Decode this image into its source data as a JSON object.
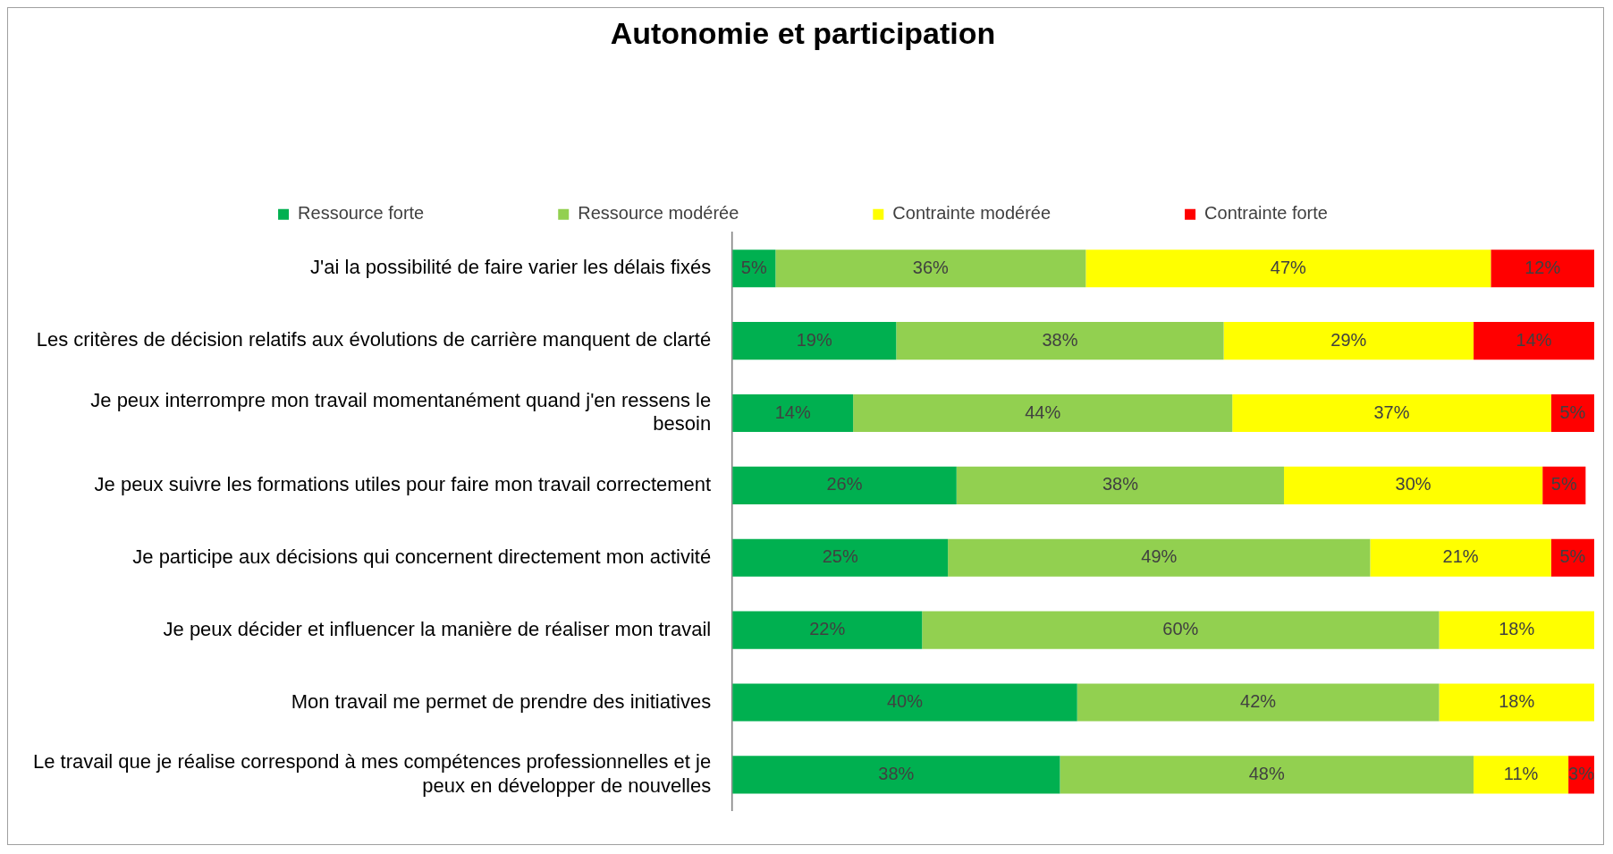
{
  "chart_data": {
    "type": "bar",
    "orientation": "horizontal",
    "stacked": true,
    "title": "Autonomie et participation",
    "legend": "top",
    "grid": false,
    "categories": [
      "J'ai la possibilité de faire varier les délais fixés",
      "Les critères de décision relatifs aux évolutions de carrière manquent de clarté",
      "Je peux interrompre mon travail momentanément quand j'en ressens le besoin",
      "Je peux suivre les formations utiles pour faire mon travail correctement",
      "Je participe aux décisions qui concernent directement mon activité",
      "Je peux décider et influencer la manière de réaliser mon travail",
      "Mon travail me permet de prendre des initiatives",
      "Le travail que je réalise correspond à mes compétences professionnelles et je peux en développer de nouvelles"
    ],
    "series": [
      {
        "name": "Ressource forte",
        "color": "#00b050",
        "values": [
          5,
          19,
          14,
          26,
          25,
          22,
          40,
          38
        ],
        "value_labels": [
          "5%",
          "19%",
          "14%",
          "26%",
          "25%",
          "22%",
          "40%",
          "38%"
        ]
      },
      {
        "name": "Ressource modérée",
        "color": "#92d050",
        "values": [
          36,
          38,
          44,
          38,
          49,
          60,
          42,
          48
        ],
        "value_labels": [
          "36%",
          "38%",
          "44%",
          "38%",
          "49%",
          "60%",
          "42%",
          "48%"
        ]
      },
      {
        "name": "Contrainte modérée",
        "color": "#ffff00",
        "values": [
          47,
          29,
          37,
          30,
          21,
          18,
          18,
          11
        ],
        "value_labels": [
          "47%",
          "29%",
          "37%",
          "30%",
          "21%",
          "18%",
          "18%",
          "11%"
        ]
      },
      {
        "name": "Contrainte forte",
        "color": "#ff0000",
        "values": [
          12,
          14,
          5,
          5,
          5,
          null,
          null,
          3
        ],
        "value_labels": [
          "12%",
          "14%",
          "5%",
          "5%",
          "5%",
          null,
          null,
          "3%"
        ]
      }
    ]
  }
}
